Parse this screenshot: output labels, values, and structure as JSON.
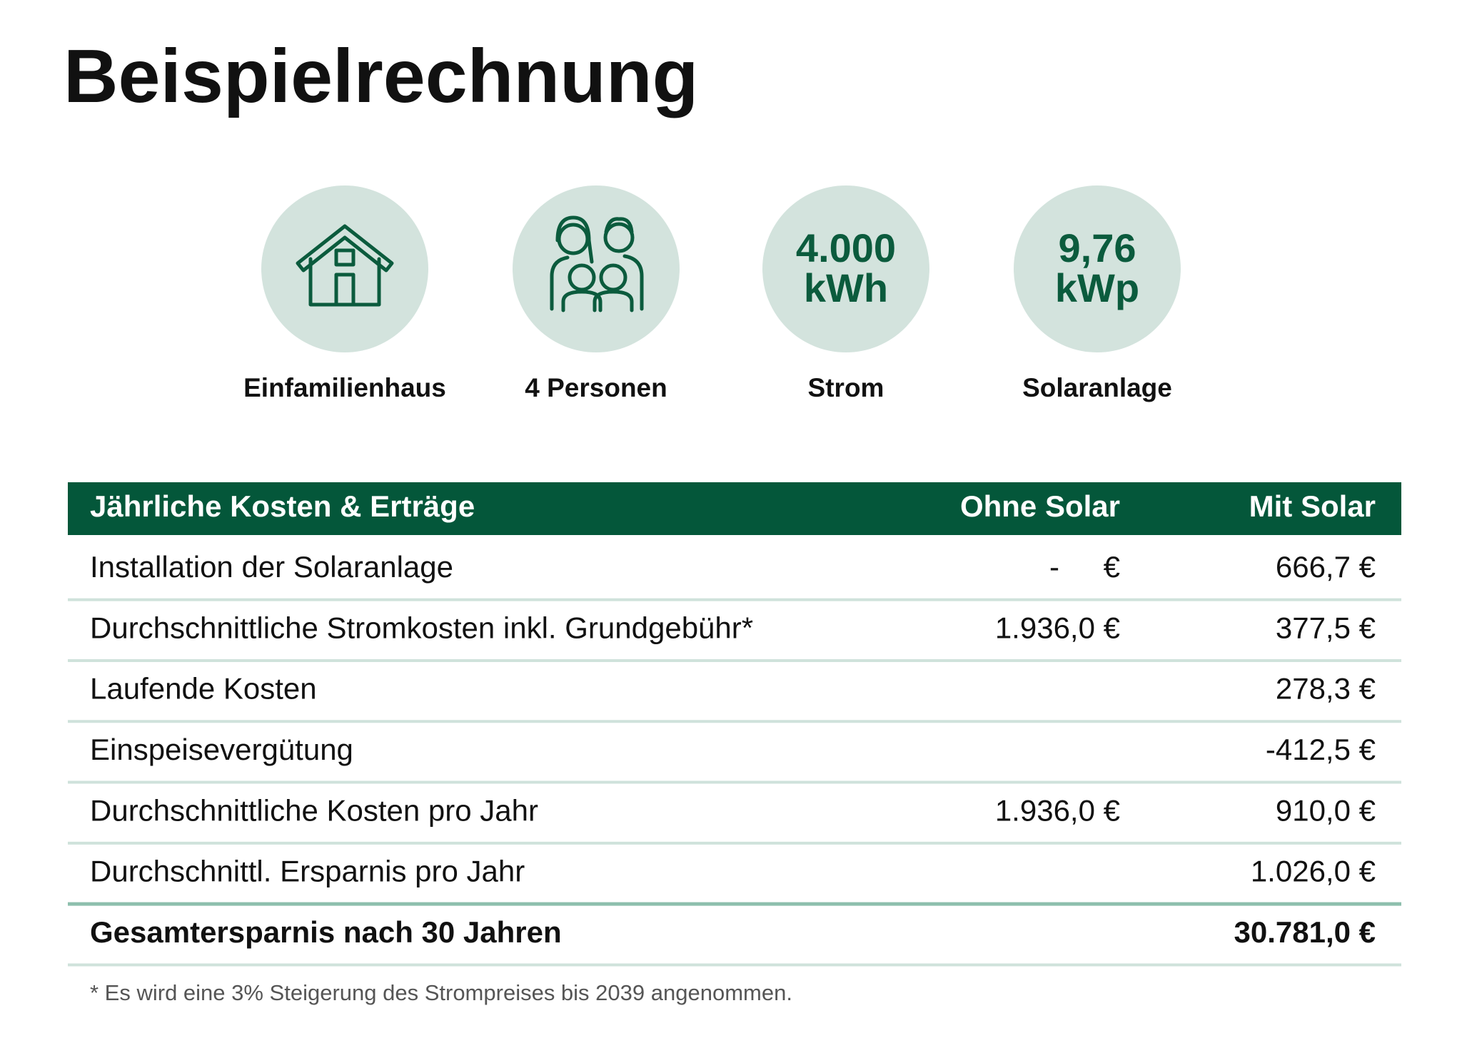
{
  "title": "Beispielrechnung",
  "features": [
    {
      "label": "Einfamilienhaus"
    },
    {
      "label": "4 Personen"
    },
    {
      "value": "4.000",
      "unit": "kWh",
      "label": "Strom"
    },
    {
      "value": "9,76",
      "unit": "kWp",
      "label": "Solaranlage"
    }
  ],
  "table": {
    "header": [
      "Jährliche Kosten & Erträge",
      "Ohne Solar",
      "Mit Solar"
    ],
    "rows": [
      [
        "Installation der Solaranlage",
        "- €",
        "666,7 €"
      ],
      [
        "Durchschnittliche Stromkosten inkl. Grundgebühr*",
        "1.936,0 €",
        "377,5 €"
      ],
      [
        "Laufende Kosten",
        null,
        "278,3 €"
      ],
      [
        "Einspeisevergütung",
        null,
        "-412,5 €"
      ],
      [
        "Durchschnittliche Kosten pro Jahr",
        "1.936,0 €",
        "910,0 €"
      ],
      [
        "Durchschnittl. Ersparnis pro Jahr",
        null,
        "1.026,0 €"
      ]
    ],
    "total": [
      "Gesamtersparnis nach 30 Jahren",
      null,
      "30.781,0 €"
    ]
  },
  "footnote": "* Es wird eine 3% Steigerung des Strompreises bis 2039 angenommen."
}
